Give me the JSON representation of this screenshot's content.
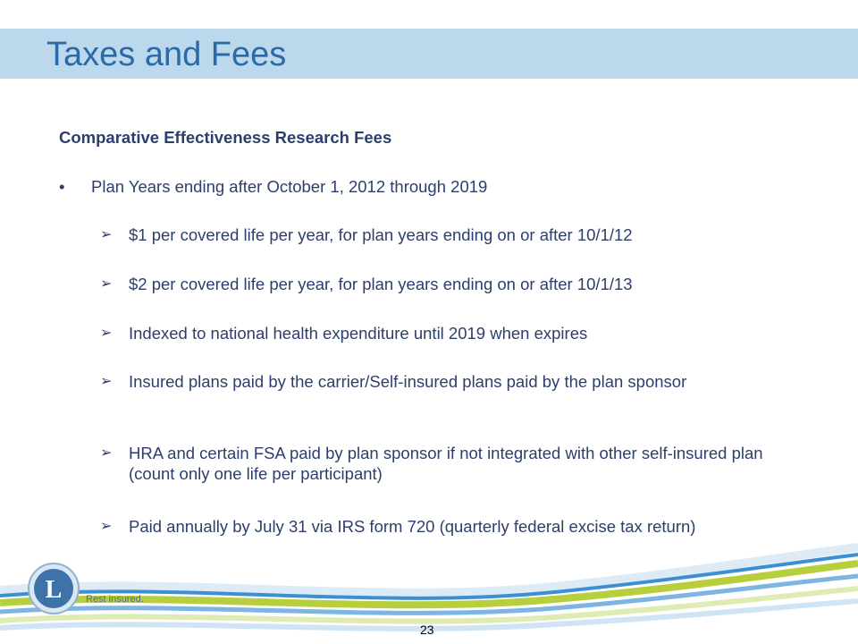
{
  "slide": {
    "title": "Taxes and Fees",
    "heading": "Comparative Effectiveness Research Fees",
    "bullet_marker": "•",
    "bullet": "Plan Years ending after October 1, 2012 through 2019",
    "subitem_marker": "➢",
    "subitems": [
      "$1 per covered life per year, for plan years ending on or after 10/1/12",
      "$2 per covered life per year, for plan years ending on or after 10/1/13",
      "Indexed to national health expenditure until 2019 when expires",
      "Insured plans paid by the carrier/Self-insured plans paid by the plan sponsor",
      "HRA and certain FSA paid by plan sponsor if not integrated with other self-insured plan (count only one life per participant)",
      "Paid annually by July 31 via IRS form 720 (quarterly federal excise tax return)"
    ],
    "page_number": "23"
  },
  "brand": {
    "logo_letter": "L",
    "tagline": "Rest insured.",
    "colors": {
      "title_bar": "#bcd8ec",
      "title_text": "#2b6aa8",
      "body_text": "#2c3e6b",
      "wave_blue": "#3d8fd0",
      "wave_green": "#b7cf3c"
    }
  }
}
